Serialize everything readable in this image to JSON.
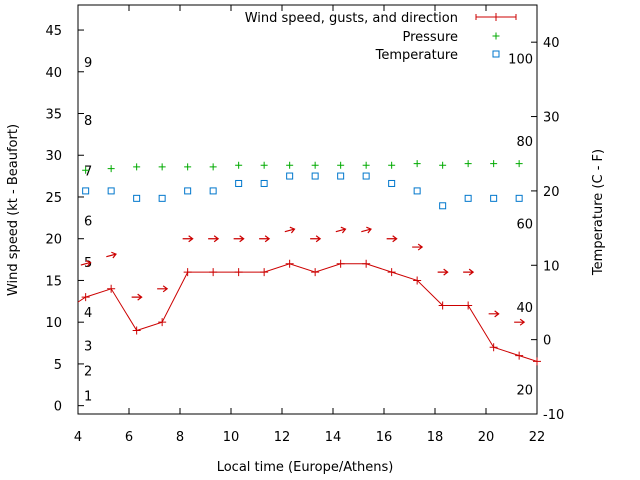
{
  "chart_data": {
    "type": "line",
    "xlabel": "Local time (Europe/Athens)",
    "ylabel": "Wind speed (kt - Beaufort)",
    "y2label": "Temperature (C - F)",
    "xlim": [
      4,
      22
    ],
    "ylim": [
      -1,
      48
    ],
    "y2lim": [
      -10,
      45
    ],
    "grid": false,
    "legend_position": "top-right",
    "x_ticks": [
      4,
      6,
      8,
      10,
      12,
      14,
      16,
      18,
      20,
      22
    ],
    "y_ticks": [
      0,
      5,
      10,
      15,
      20,
      25,
      30,
      35,
      40,
      45
    ],
    "y2_ticks": [
      -10,
      0,
      10,
      20,
      30,
      40
    ],
    "beaufort_labels": [
      {
        "text": "1",
        "y": 1.2
      },
      {
        "text": "2",
        "y": 4.2
      },
      {
        "text": "3",
        "y": 7.2
      },
      {
        "text": "4",
        "y": 11.2
      },
      {
        "text": "5",
        "y": 17.2
      },
      {
        "text": "6",
        "y": 22.2
      },
      {
        "text": "7",
        "y": 28.2
      },
      {
        "text": "8",
        "y": 34.2
      },
      {
        "text": "9",
        "y": 41.2
      }
    ],
    "fahrenheit_labels": [
      {
        "text": "20",
        "temp": -6.7
      },
      {
        "text": "40",
        "temp": 4.4
      },
      {
        "text": "60",
        "temp": 15.6
      },
      {
        "text": "80",
        "temp": 26.7
      },
      {
        "text": "100",
        "temp": 37.8
      }
    ],
    "legend": [
      {
        "label": "Wind speed, gusts, and direction",
        "color": "#cc0000",
        "marker": "line-plus"
      },
      {
        "label": "Pressure",
        "color": "#00aa00",
        "marker": "plus"
      },
      {
        "label": "Temperature",
        "color": "#0077cc",
        "marker": "square"
      }
    ],
    "series": [
      {
        "name": "Wind speed, gusts, and direction",
        "color": "#cc0000",
        "x": [
          3.3,
          4.3,
          5.3,
          6.3,
          7.3,
          8.3,
          9.3,
          10.3,
          11.3,
          12.3,
          13.3,
          14.3,
          15.3,
          16.3,
          17.3,
          18.3,
          19.3,
          20.3,
          21.3,
          22.0
        ],
        "y": [
          11,
          13,
          14,
          9,
          10,
          16,
          16,
          16,
          16,
          17,
          16,
          17,
          17,
          16,
          15,
          12,
          12,
          7,
          6,
          5.3
        ]
      },
      {
        "name": "Pressure",
        "color": "#00aa00",
        "x": [
          4.3,
          5.3,
          6.3,
          7.3,
          8.3,
          9.3,
          10.3,
          11.3,
          12.3,
          13.3,
          14.3,
          15.3,
          16.3,
          17.3,
          18.3,
          19.3,
          20.3,
          21.3
        ],
        "y": [
          28.2,
          28.4,
          28.6,
          28.6,
          28.6,
          28.6,
          28.8,
          28.8,
          28.8,
          28.8,
          28.8,
          28.8,
          28.8,
          29.0,
          28.8,
          29.0,
          29.0,
          29.0
        ]
      },
      {
        "name": "Temperature",
        "color": "#0077cc",
        "x": [
          4.3,
          5.3,
          6.3,
          7.3,
          8.3,
          9.3,
          10.3,
          11.3,
          12.3,
          13.3,
          14.3,
          15.3,
          16.3,
          17.3,
          18.3,
          19.3,
          20.3,
          21.3
        ],
        "y": [
          20,
          20,
          19,
          19,
          20,
          20,
          21,
          21,
          22,
          22,
          22,
          22,
          21,
          20,
          18,
          19,
          19,
          19
        ]
      }
    ],
    "direction_arrows": {
      "color": "#cc0000",
      "x": [
        4.3,
        5.3,
        6.3,
        7.3,
        8.3,
        9.3,
        10.3,
        11.3,
        12.3,
        13.3,
        14.3,
        15.3,
        16.3,
        17.3,
        18.3,
        19.3,
        20.3,
        21.3
      ],
      "y": [
        17,
        18,
        13,
        14,
        20,
        20,
        20,
        20,
        21,
        20,
        21,
        21,
        20,
        19,
        16,
        16,
        11,
        10
      ],
      "angle_deg": [
        15,
        15,
        0,
        0,
        0,
        0,
        0,
        0,
        15,
        0,
        15,
        15,
        0,
        0,
        0,
        0,
        0,
        0
      ]
    }
  }
}
